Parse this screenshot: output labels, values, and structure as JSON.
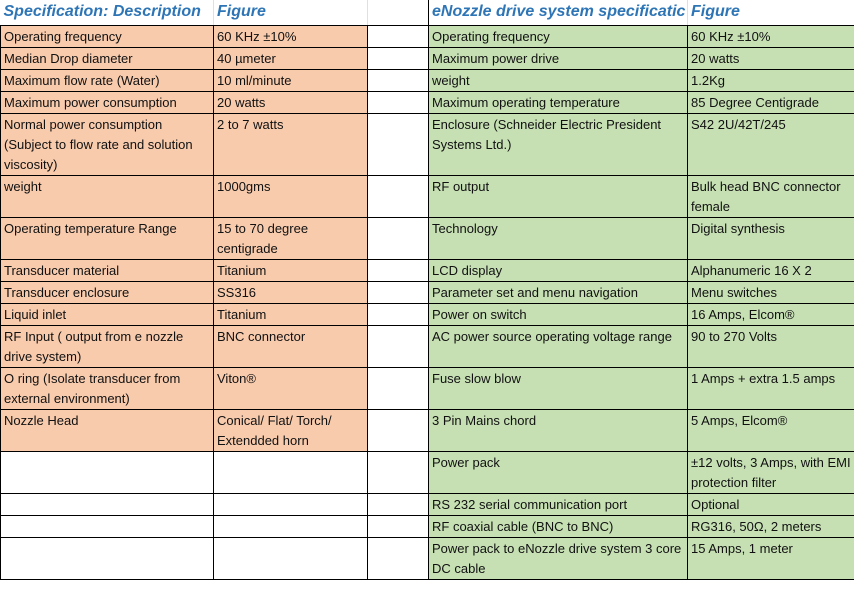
{
  "left": {
    "header": {
      "description": "Specification: Description",
      "figure": "Figure"
    },
    "rows": [
      {
        "description": "Operating frequency",
        "figure": "60 KHz ±10%"
      },
      {
        "description": "Median Drop diameter",
        "figure": "40 µmeter"
      },
      {
        "description": "Maximum flow rate (Water)",
        "figure": "10 ml/minute"
      },
      {
        "description": "Maximum power consumption",
        "figure": "20 watts"
      },
      {
        "description": "Normal power consumption (Subject to flow rate and solution viscosity)",
        "figure": "2 to 7 watts"
      },
      {
        "description": "weight",
        "figure": "1000gms"
      },
      {
        "description": "Operating temperature Range",
        "figure": "15 to 70 degree centigrade"
      },
      {
        "description": "Transducer material",
        "figure": "Titanium"
      },
      {
        "description": "Transducer enclosure",
        "figure": "SS316"
      },
      {
        "description": "Liquid inlet",
        "figure": "Titanium"
      },
      {
        "description": " RF Input ( output from e nozzle drive system)",
        "figure": "BNC connector"
      },
      {
        "description": "O ring (Isolate transducer from external environment)",
        "figure": "Viton®"
      },
      {
        "description": "Nozzle Head",
        "figure": "Conical/ Flat/ Torch/ Extendded horn"
      }
    ]
  },
  "right": {
    "header": {
      "description": "eNozzle drive system specificatic",
      "figure": "Figure"
    },
    "rows": [
      {
        "description": "Operating frequency",
        "figure": "60 KHz ±10%"
      },
      {
        "description": "Maximum power drive",
        "figure": "20 watts"
      },
      {
        "description": "weight",
        "figure": "1.2Kg"
      },
      {
        "description": "Maximum operating temperature",
        "figure": "85 Degree Centigrade"
      },
      {
        "description": "Enclosure (Schneider Electric President Systems Ltd.)",
        "figure": "S42 2U/42T/245"
      },
      {
        "description": " RF output",
        "figure": "Bulk head BNC connector female"
      },
      {
        "description": "Technology",
        "figure": "Digital synthesis"
      },
      {
        "description": "LCD display",
        "figure": "Alphanumeric 16 X 2"
      },
      {
        "description": "Parameter set and menu navigation",
        "figure": "Menu switches"
      },
      {
        "description": "Power on switch",
        "figure": "16 Amps, Elcom®"
      },
      {
        "description": "AC power source operating  voltage range",
        "figure": "90 to 270 Volts"
      },
      {
        "description": "Fuse slow blow",
        "figure": "1 Amps + extra 1.5 amps"
      },
      {
        "description": "3 Pin Mains chord",
        "figure": "5 Amps, Elcom®"
      },
      {
        "description": "Power pack",
        "figure": "±12 volts, 3 Amps, with EMI protection filter"
      },
      {
        "description": "RS 232 serial communication port",
        "figure": "Optional"
      },
      {
        "description": "RF coaxial cable (BNC to BNC)",
        "figure": "RG316, 50Ω, 2 meters"
      },
      {
        "description": "Power pack to eNozzle drive system 3 core DC cable",
        "figure": "15 Amps, 1 meter"
      }
    ]
  },
  "colors": {
    "left_fill": "#f8cbad",
    "right_fill": "#c6e0b4",
    "header_text": "#2e75b6"
  }
}
